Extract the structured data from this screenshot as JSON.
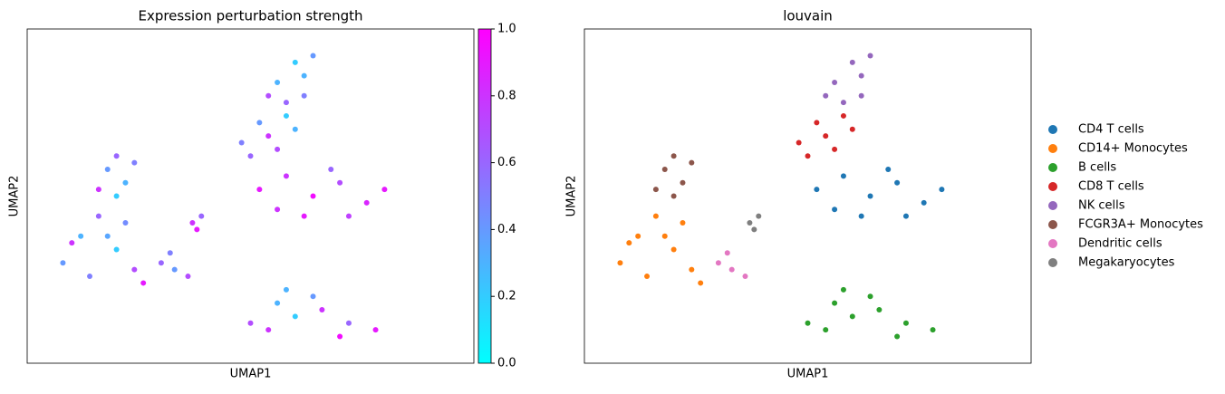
{
  "chart_data": [
    {
      "type": "scatter",
      "title": "Expression perturbation strength",
      "xlabel": "UMAP1",
      "ylabel": "UMAP2",
      "xlim": [
        0,
        100
      ],
      "ylim": [
        0,
        100
      ],
      "x": [
        52,
        58,
        64,
        70,
        76,
        62,
        68,
        56,
        72,
        80,
        8,
        12,
        16,
        20,
        24,
        14,
        18,
        10,
        22,
        26,
        50,
        56,
        60,
        66,
        72,
        78,
        54,
        64,
        70,
        58,
        48,
        52,
        56,
        60,
        50,
        58,
        54,
        56,
        60,
        64,
        58,
        62,
        62,
        54,
        18,
        20,
        22,
        16,
        24,
        20,
        30,
        33,
        36,
        32,
        37,
        39,
        38
      ],
      "y": [
        52,
        56,
        50,
        54,
        48,
        44,
        58,
        46,
        44,
        52,
        30,
        38,
        44,
        34,
        28,
        26,
        38,
        36,
        42,
        24,
        12,
        18,
        14,
        16,
        12,
        10,
        10,
        20,
        8,
        22,
        66,
        72,
        64,
        70,
        62,
        74,
        68,
        84,
        90,
        92,
        78,
        80,
        86,
        80,
        58,
        62,
        54,
        52,
        60,
        50,
        30,
        28,
        26,
        33,
        42,
        44,
        40
      ],
      "values": [
        0.9,
        0.8,
        0.95,
        0.7,
        0.85,
        0.9,
        0.6,
        0.8,
        0.75,
        0.9,
        0.4,
        0.3,
        0.6,
        0.2,
        0.7,
        0.5,
        0.35,
        0.8,
        0.45,
        0.9,
        0.7,
        0.3,
        0.2,
        0.8,
        0.6,
        0.9,
        0.8,
        0.4,
        0.95,
        0.3,
        0.5,
        0.4,
        0.7,
        0.3,
        0.6,
        0.2,
        0.8,
        0.3,
        0.2,
        0.4,
        0.6,
        0.5,
        0.3,
        0.7,
        0.4,
        0.6,
        0.3,
        0.8,
        0.5,
        0.2,
        0.6,
        0.4,
        0.7,
        0.5,
        0.8,
        0.6,
        0.9
      ],
      "cmap": [
        "#00ffff",
        "#ff00ff"
      ],
      "clim": [
        0,
        1
      ],
      "cticks": [
        {
          "value": 0,
          "label": "0.0"
        },
        {
          "value": 0.2,
          "label": "0.2"
        },
        {
          "value": 0.4,
          "label": "0.4"
        },
        {
          "value": 0.6,
          "label": "0.6"
        },
        {
          "value": 0.8,
          "label": "0.8"
        },
        {
          "value": 1,
          "label": "1.0"
        }
      ]
    },
    {
      "type": "scatter",
      "title": "louvain",
      "xlabel": "UMAP1",
      "ylabel": "UMAP2",
      "xlim": [
        0,
        100
      ],
      "ylim": [
        0,
        100
      ],
      "legend": "right",
      "series": [
        {
          "name": "CD4 T cells",
          "color": "#1f77b4",
          "x": [
            52,
            58,
            64,
            70,
            76,
            62,
            68,
            56,
            72,
            80
          ],
          "y": [
            52,
            56,
            50,
            54,
            48,
            44,
            58,
            46,
            44,
            52
          ]
        },
        {
          "name": "CD14+ Monocytes",
          "color": "#ff7f0e",
          "x": [
            8,
            12,
            16,
            20,
            24,
            14,
            18,
            10,
            22,
            26
          ],
          "y": [
            30,
            38,
            44,
            34,
            28,
            26,
            38,
            36,
            42,
            24
          ]
        },
        {
          "name": "B cells",
          "color": "#2ca02c",
          "x": [
            50,
            56,
            60,
            66,
            72,
            78,
            54,
            64,
            70,
            58
          ],
          "y": [
            12,
            18,
            14,
            16,
            12,
            10,
            10,
            20,
            8,
            22
          ]
        },
        {
          "name": "CD8 T cells",
          "color": "#d62728",
          "x": [
            48,
            52,
            56,
            60,
            50,
            58,
            54
          ],
          "y": [
            66,
            72,
            64,
            70,
            62,
            74,
            68
          ]
        },
        {
          "name": "NK cells",
          "color": "#9467bd",
          "x": [
            56,
            60,
            64,
            58,
            62,
            62,
            54
          ],
          "y": [
            84,
            90,
            92,
            78,
            80,
            86,
            80
          ]
        },
        {
          "name": "FCGR3A+ Monocytes",
          "color": "#8c564b",
          "x": [
            18,
            20,
            22,
            16,
            24,
            20
          ],
          "y": [
            58,
            62,
            54,
            52,
            60,
            50
          ]
        },
        {
          "name": "Dendritic cells",
          "color": "#e377c2",
          "x": [
            30,
            33,
            36,
            32
          ],
          "y": [
            30,
            28,
            26,
            33
          ]
        },
        {
          "name": "Megakaryocytes",
          "color": "#7f7f7f",
          "x": [
            37,
            39,
            38
          ],
          "y": [
            42,
            44,
            40
          ]
        }
      ]
    }
  ]
}
